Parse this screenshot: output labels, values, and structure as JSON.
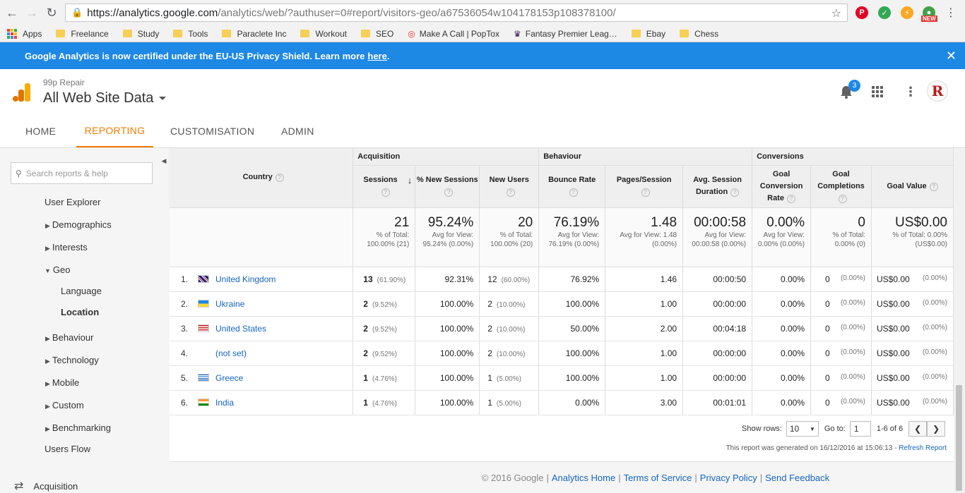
{
  "browser": {
    "url_host": "https://analytics.google.com",
    "url_rest": "/analytics/web/?authuser=0#report/visitors-geo/a67536054w104178153p108378100/",
    "ext_new_label": "NEW",
    "bookmarks": [
      "Apps",
      "Freelance",
      "Study",
      "Tools",
      "Paraclete Inc",
      "Workout",
      "SEO",
      "Make A Call | PopTox",
      "Fantasy Premier Leag…",
      "Ebay",
      "Chess"
    ]
  },
  "banner": {
    "text": "Google Analytics is now certified under the EU-US Privacy Shield. Learn more",
    "link": "here",
    "period": "."
  },
  "header": {
    "account": "99p Repair",
    "property": "All Web Site Data",
    "notifications": "3",
    "avatar_letter": "R"
  },
  "tabs": [
    "HOME",
    "REPORTING",
    "CUSTOMISATION",
    "ADMIN"
  ],
  "sidebar": {
    "search_placeholder": "Search reports & help",
    "items": [
      "User Explorer",
      "Demographics",
      "Interests",
      "Geo",
      "Language",
      "Location",
      "Behaviour",
      "Technology",
      "Mobile",
      "Custom",
      "Benchmarking",
      "Users Flow",
      "Acquisition"
    ]
  },
  "table": {
    "groups": {
      "acquisition": "Acquisition",
      "behaviour": "Behaviour",
      "conversions": "Conversions"
    },
    "headers": {
      "country": "Country",
      "sessions": "Sessions",
      "new_sessions": "% New Sessions",
      "new_users": "New Users",
      "bounce": "Bounce Rate",
      "pages": "Pages/Session",
      "duration": "Avg. Session Duration",
      "conv_rate": "Goal Conversion Rate",
      "completions": "Goal Completions",
      "goal_value": "Goal Value"
    },
    "totals": [
      {
        "big": "21",
        "sub": "% of Total: 100.00% (21)"
      },
      {
        "big": "95.24%",
        "sub": "Avg for View: 95.24% (0.00%)"
      },
      {
        "big": "20",
        "sub": "% of Total: 100.00% (20)"
      },
      {
        "big": "76.19%",
        "sub": "Avg for View: 76.19% (0.00%)"
      },
      {
        "big": "1.48",
        "sub": "Avg for View: 1.48 (0.00%)"
      },
      {
        "big": "00:00:58",
        "sub": "Avg for View: 00:00:58 (0.00%)"
      },
      {
        "big": "0.00%",
        "sub": "Avg for View: 0.00% (0.00%)"
      },
      {
        "big": "0",
        "sub": "% of Total: 0.00% (0)"
      },
      {
        "big": "US$0.00",
        "sub": "% of Total: 0.00% (US$0.00)"
      }
    ],
    "rows": [
      {
        "num": "1.",
        "flag": "uk",
        "country": "United Kingdom",
        "sessions": "13",
        "sessions_pct": "(61.90%)",
        "new_sessions": "92.31%",
        "new_users": "12",
        "new_users_pct": "(60.00%)",
        "bounce": "76.92%",
        "pages": "1.46",
        "duration": "00:00:50",
        "conv": "0.00%",
        "comp": "0",
        "comp_pct": "(0.00%)",
        "value": "US$0.00",
        "value_pct": "(0.00%)"
      },
      {
        "num": "2.",
        "flag": "ua",
        "country": "Ukraine",
        "sessions": "2",
        "sessions_pct": "(9.52%)",
        "new_sessions": "100.00%",
        "new_users": "2",
        "new_users_pct": "(10.00%)",
        "bounce": "100.00%",
        "pages": "1.00",
        "duration": "00:00:00",
        "conv": "0.00%",
        "comp": "0",
        "comp_pct": "(0.00%)",
        "value": "US$0.00",
        "value_pct": "(0.00%)"
      },
      {
        "num": "3.",
        "flag": "us",
        "country": "United States",
        "sessions": "2",
        "sessions_pct": "(9.52%)",
        "new_sessions": "100.00%",
        "new_users": "2",
        "new_users_pct": "(10.00%)",
        "bounce": "50.00%",
        "pages": "2.00",
        "duration": "00:04:18",
        "conv": "0.00%",
        "comp": "0",
        "comp_pct": "(0.00%)",
        "value": "US$0.00",
        "value_pct": "(0.00%)"
      },
      {
        "num": "4.",
        "flag": "",
        "country": "(not set)",
        "sessions": "2",
        "sessions_pct": "(9.52%)",
        "new_sessions": "100.00%",
        "new_users": "2",
        "new_users_pct": "(10.00%)",
        "bounce": "100.00%",
        "pages": "1.00",
        "duration": "00:00:00",
        "conv": "0.00%",
        "comp": "0",
        "comp_pct": "(0.00%)",
        "value": "US$0.00",
        "value_pct": "(0.00%)"
      },
      {
        "num": "5.",
        "flag": "gr",
        "country": "Greece",
        "sessions": "1",
        "sessions_pct": "(4.76%)",
        "new_sessions": "100.00%",
        "new_users": "1",
        "new_users_pct": "(5.00%)",
        "bounce": "100.00%",
        "pages": "1.00",
        "duration": "00:00:00",
        "conv": "0.00%",
        "comp": "0",
        "comp_pct": "(0.00%)",
        "value": "US$0.00",
        "value_pct": "(0.00%)"
      },
      {
        "num": "6.",
        "flag": "in",
        "country": "India",
        "sessions": "1",
        "sessions_pct": "(4.76%)",
        "new_sessions": "100.00%",
        "new_users": "1",
        "new_users_pct": "(5.00%)",
        "bounce": "0.00%",
        "pages": "3.00",
        "duration": "00:01:01",
        "conv": "0.00%",
        "comp": "0",
        "comp_pct": "(0.00%)",
        "value": "US$0.00",
        "value_pct": "(0.00%)"
      }
    ]
  },
  "pager": {
    "show_rows_label": "Show rows:",
    "show_rows_value": "10",
    "goto_label": "Go to:",
    "goto_value": "1",
    "range": "1-6 of 6"
  },
  "generated": {
    "text": "This report was generated on 16/12/2016 at 15:06:13 -",
    "link": "Refresh Report"
  },
  "footer": {
    "copyright": "© 2016 Google",
    "links": [
      "Analytics Home",
      "Terms of Service",
      "Privacy Policy",
      "Send Feedback"
    ]
  },
  "colors": {
    "accent": "#f57c00",
    "banner": "#1e88e5",
    "link": "#1565c0"
  }
}
